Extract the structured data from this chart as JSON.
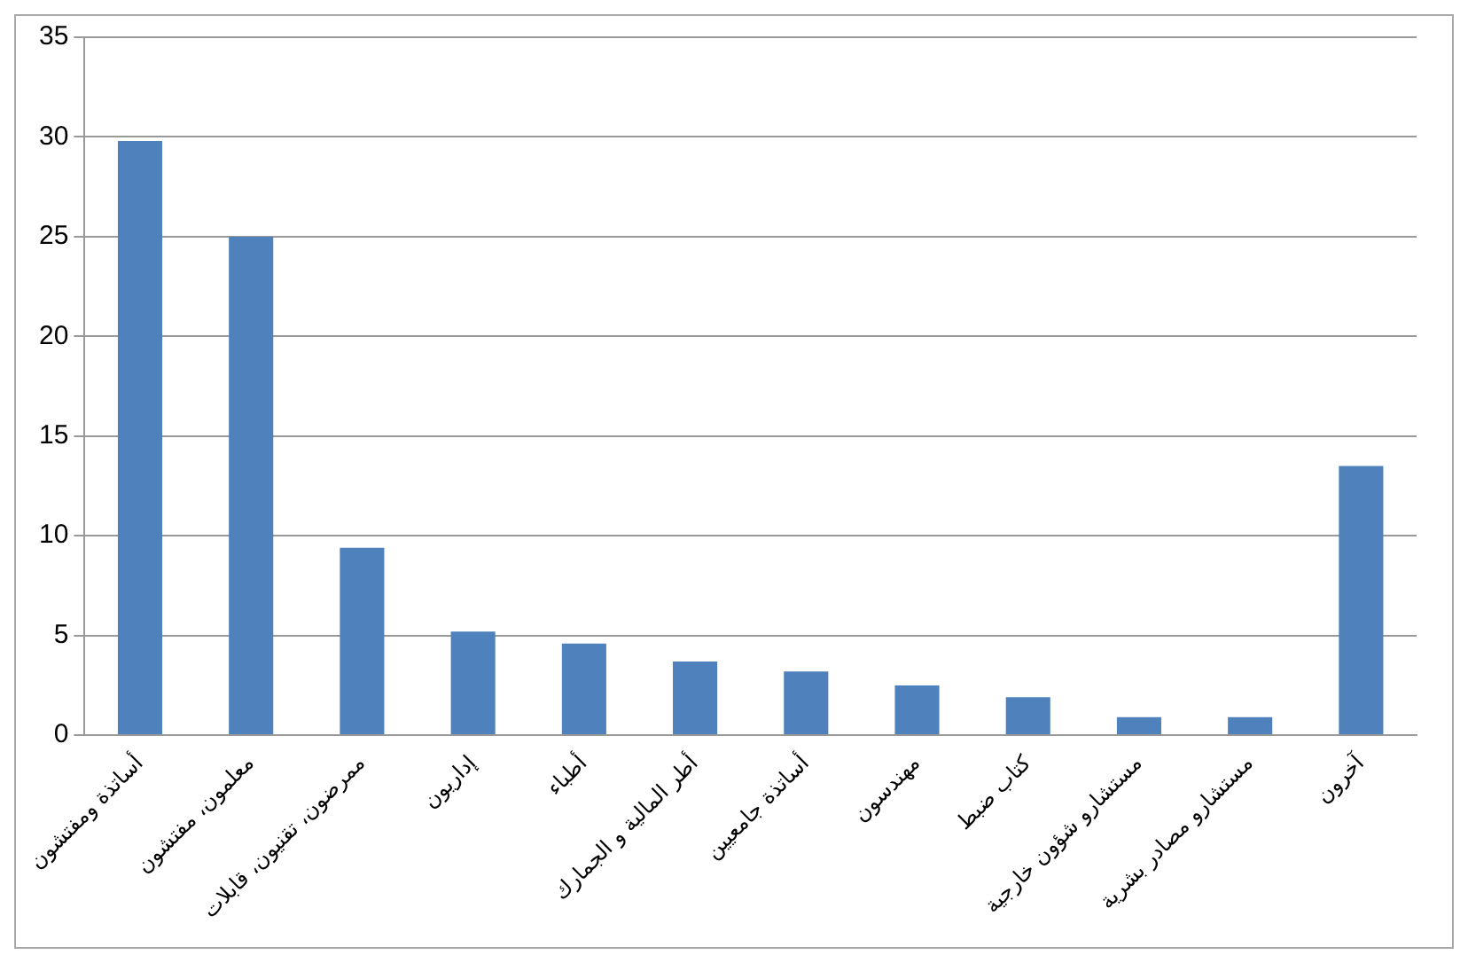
{
  "chart_data": {
    "type": "bar",
    "categories": [
      "أساتذة ومفتشون",
      "معلمون، مفتشون",
      "ممرضون، تقنيون، قابلات",
      "إداريون",
      "أطباء",
      "أطر المالية و الجمارك",
      "أساتذة جامعيين",
      "مهندسون",
      "كتاب ضبط",
      "مستشارو شؤون خارجية",
      "مستشارو مصادر بشرية",
      "آخرون"
    ],
    "values": [
      29.8,
      25.0,
      9.4,
      5.2,
      4.6,
      3.7,
      3.2,
      2.5,
      1.9,
      0.9,
      0.9,
      13.5
    ],
    "color": "#4f81bd",
    "ylim": [
      0,
      35
    ],
    "yticks": [
      0,
      5,
      10,
      15,
      20,
      25,
      30,
      35
    ],
    "grid": "y",
    "legend": false
  }
}
